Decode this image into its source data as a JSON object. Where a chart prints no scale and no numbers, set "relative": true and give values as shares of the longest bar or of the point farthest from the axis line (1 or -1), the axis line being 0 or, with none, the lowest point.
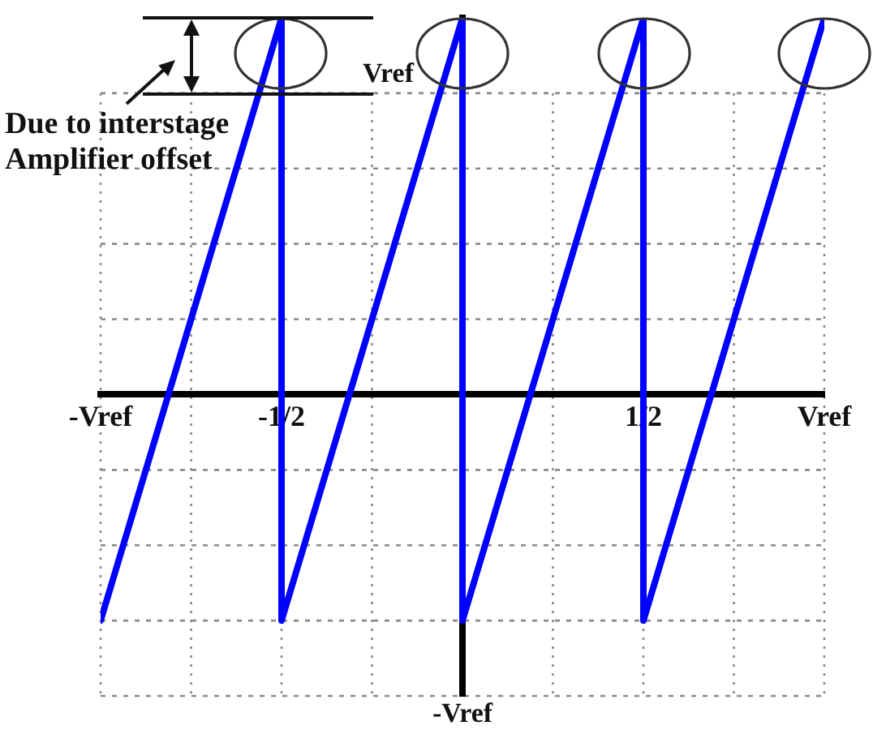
{
  "chart_data": {
    "type": "line",
    "relative": true,
    "x": [
      -1,
      -0.5,
      -0.5,
      0,
      0,
      0.5,
      0.5,
      1
    ],
    "series": [
      {
        "color": "#0000ff",
        "values": [
          -0.6,
          1,
          -0.6,
          1,
          -0.6,
          1,
          -0.6,
          1
        ]
      }
    ],
    "xlim": [
      -1,
      1
    ],
    "xticks": [
      {
        "value": -1,
        "label": "-Vref"
      },
      {
        "value": -0.75,
        "label": null
      },
      {
        "value": -0.5,
        "label": "-1/2"
      },
      {
        "value": -0.25,
        "label": null
      },
      {
        "value": 0,
        "label": null
      },
      {
        "value": 0.25,
        "label": null
      },
      {
        "value": 0.5,
        "label": "1/2"
      },
      {
        "value": 0.75,
        "label": null
      },
      {
        "value": 1,
        "label": "Vref"
      }
    ],
    "ref_lines": [
      {
        "axis": "y",
        "value": 0.8,
        "label": "Vref",
        "color": "#8a8a8a",
        "line_style": "dashed"
      },
      {
        "axis": "y",
        "value": -0.8,
        "label": "-Vref",
        "color": "#8a8a8a",
        "line_style": "dashed"
      }
    ],
    "grid": true,
    "legend": false,
    "annotations": [
      "Due to interstage Amplifier offset"
    ]
  }
}
